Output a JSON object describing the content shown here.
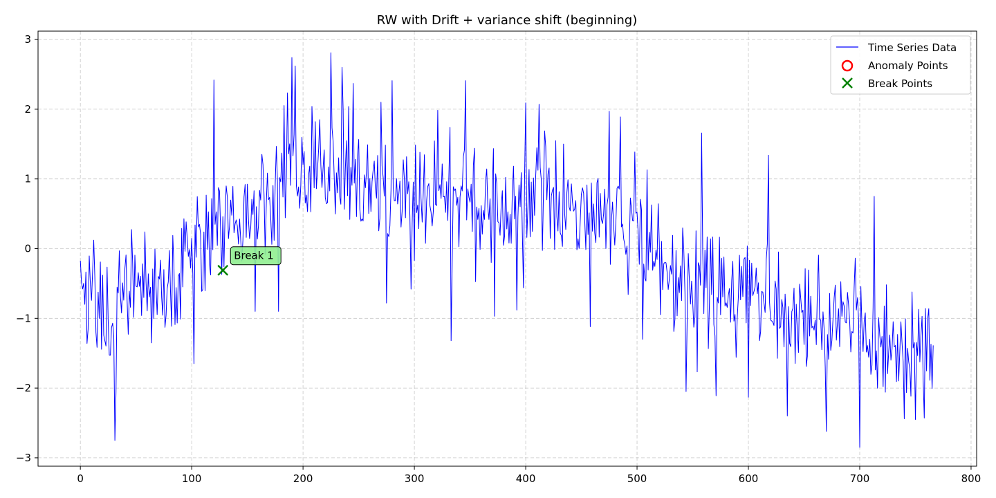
{
  "chart_data": {
    "type": "line",
    "title": "RW with Drift + variance shift (beginning)",
    "xlabel": "",
    "ylabel": "",
    "xlim": [
      -38,
      805
    ],
    "ylim": [
      -3.12,
      3.12
    ],
    "xticks": [
      0,
      100,
      200,
      300,
      400,
      500,
      600,
      700,
      800
    ],
    "yticks": [
      -3,
      -2,
      -1,
      0,
      1,
      2,
      3
    ],
    "xtick_labels": [
      "0",
      "100",
      "200",
      "300",
      "400",
      "500",
      "600",
      "700",
      "800"
    ],
    "ytick_labels": [
      "−3",
      "−2",
      "−1",
      "0",
      "1",
      "2",
      "3"
    ],
    "grid": true,
    "legend_position": "top-right",
    "legend": [
      "Time Series Data",
      "Anomaly Points",
      "Break Points"
    ],
    "colors": {
      "series": "#0000ff",
      "anomaly": "#ff0000",
      "break": "#008000",
      "annotation_bg": "#90ee90"
    },
    "anchors": [
      [
        0,
        -0.1
      ],
      [
        5,
        -0.6
      ],
      [
        10,
        -0.3
      ],
      [
        15,
        -0.8
      ],
      [
        20,
        -0.9
      ],
      [
        25,
        -1.0
      ],
      [
        31,
        -1.2
      ],
      [
        35,
        -1.0
      ],
      [
        40,
        -0.6
      ],
      [
        50,
        -0.5
      ],
      [
        60,
        -0.7
      ],
      [
        70,
        -0.6
      ],
      [
        80,
        -0.5
      ],
      [
        90,
        -0.4
      ],
      [
        100,
        0.0
      ],
      [
        110,
        0.1
      ],
      [
        120,
        0.3
      ],
      [
        128,
        0.4
      ],
      [
        140,
        0.5
      ],
      [
        150,
        0.4
      ],
      [
        160,
        0.5
      ],
      [
        170,
        0.6
      ],
      [
        180,
        0.9
      ],
      [
        190,
        1.3
      ],
      [
        200,
        1.2
      ],
      [
        210,
        1.1
      ],
      [
        220,
        1.1
      ],
      [
        230,
        1.0
      ],
      [
        240,
        1.0
      ],
      [
        250,
        1.0
      ],
      [
        260,
        1.0
      ],
      [
        270,
        0.9
      ],
      [
        280,
        0.8
      ],
      [
        290,
        0.7
      ],
      [
        300,
        0.6
      ],
      [
        310,
        0.7
      ],
      [
        320,
        0.7
      ],
      [
        330,
        0.6
      ],
      [
        340,
        0.7
      ],
      [
        350,
        0.8
      ],
      [
        360,
        0.7
      ],
      [
        370,
        0.6
      ],
      [
        380,
        0.5
      ],
      [
        390,
        0.6
      ],
      [
        400,
        0.8
      ],
      [
        410,
        0.9
      ],
      [
        420,
        0.9
      ],
      [
        430,
        0.8
      ],
      [
        440,
        0.7
      ],
      [
        450,
        0.6
      ],
      [
        460,
        0.5
      ],
      [
        470,
        0.5
      ],
      [
        480,
        0.4
      ],
      [
        490,
        0.3
      ],
      [
        500,
        0.2
      ],
      [
        510,
        0.0
      ],
      [
        520,
        -0.2
      ],
      [
        530,
        -0.3
      ],
      [
        540,
        -0.4
      ],
      [
        550,
        -0.5
      ],
      [
        560,
        -0.5
      ],
      [
        570,
        -0.6
      ],
      [
        580,
        -0.6
      ],
      [
        590,
        -0.7
      ],
      [
        600,
        -0.7
      ],
      [
        610,
        -0.7
      ],
      [
        620,
        -0.8
      ],
      [
        630,
        -0.8
      ],
      [
        640,
        -0.9
      ],
      [
        650,
        -0.9
      ],
      [
        660,
        -0.9
      ],
      [
        670,
        -1.0
      ],
      [
        680,
        -1.0
      ],
      [
        690,
        -1.1
      ],
      [
        700,
        -1.2
      ],
      [
        710,
        -1.3
      ],
      [
        720,
        -1.3
      ],
      [
        730,
        -1.4
      ],
      [
        740,
        -1.4
      ],
      [
        750,
        -1.4
      ],
      [
        760,
        -1.4
      ],
      [
        766,
        -1.5
      ]
    ],
    "spikes": [
      [
        31,
        -2.75
      ],
      [
        102,
        -1.65
      ],
      [
        120,
        2.42
      ],
      [
        157,
        -0.9
      ],
      [
        178,
        -0.9
      ],
      [
        190,
        2.74
      ],
      [
        193,
        2.62
      ],
      [
        215,
        1.85
      ],
      [
        225,
        2.81
      ],
      [
        235,
        2.6
      ],
      [
        245,
        2.37
      ],
      [
        270,
        2.1
      ],
      [
        275,
        -0.78
      ],
      [
        280,
        2.41
      ],
      [
        297,
        -0.58
      ],
      [
        333,
        -1.32
      ],
      [
        346,
        2.41
      ],
      [
        372,
        -0.97
      ],
      [
        392,
        -0.88
      ],
      [
        400,
        2.09
      ],
      [
        412,
        2.07
      ],
      [
        458,
        -1.12
      ],
      [
        475,
        1.97
      ],
      [
        485,
        1.89
      ],
      [
        505,
        -1.3
      ],
      [
        544,
        -2.05
      ],
      [
        558,
        1.66
      ],
      [
        571,
        -2.11
      ],
      [
        600,
        -2.13
      ],
      [
        618,
        1.34
      ],
      [
        635,
        -2.4
      ],
      [
        670,
        -2.62
      ],
      [
        700,
        -2.85
      ],
      [
        713,
        0.75
      ],
      [
        740,
        -2.44
      ],
      [
        750,
        -2.45
      ],
      [
        758,
        -2.43
      ]
    ],
    "series_n": 767,
    "series_seed": 17,
    "break_points": [
      {
        "x": 128,
        "y": -0.31,
        "label": "Break 1"
      }
    ],
    "anomaly_points": []
  }
}
